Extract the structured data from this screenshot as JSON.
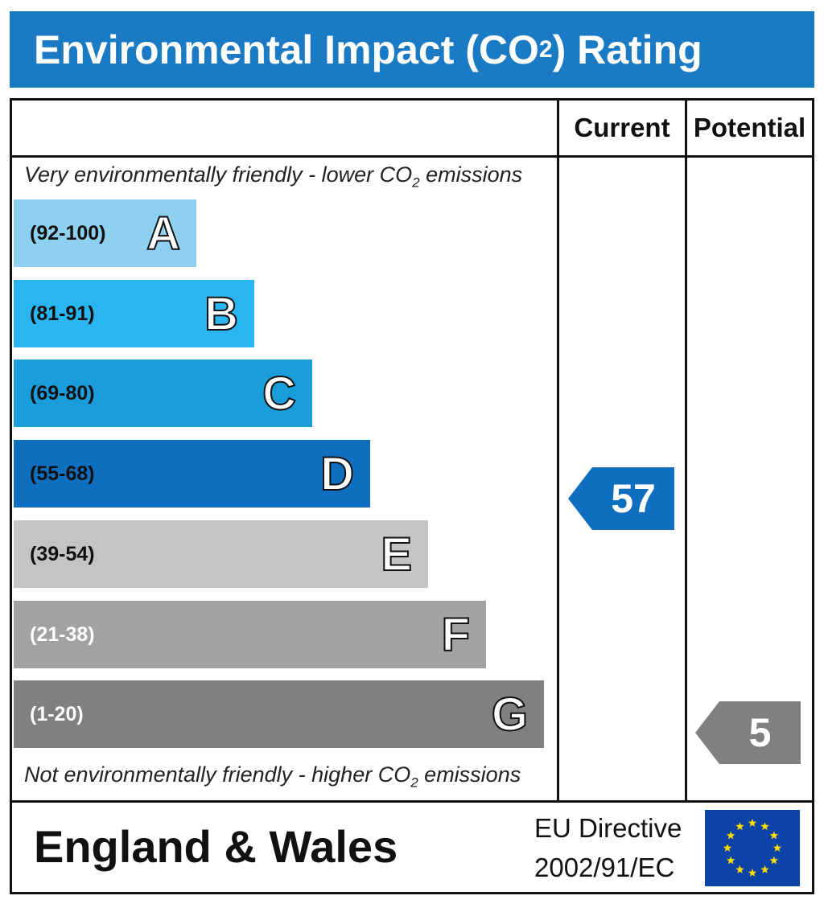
{
  "title": {
    "prefix": "Environmental Impact (CO",
    "subscript": "2",
    "suffix": ") Rating"
  },
  "columns": {
    "current": "Current",
    "potential": "Potential"
  },
  "notes": {
    "top": {
      "text": "Very environmentally friendly - lower CO",
      "subscript": "2",
      "suffix": " emissions"
    },
    "bottom": {
      "text": "Not environmentally friendly - higher CO",
      "subscript": "2",
      "suffix": " emissions"
    }
  },
  "footer": {
    "region": "England & Wales",
    "directive_line1": "EU Directive",
    "directive_line2": "2002/91/EC",
    "flag_icon": "eu-flag-icon"
  },
  "chart_data": {
    "type": "bar",
    "categories": [
      "A",
      "B",
      "C",
      "D",
      "E",
      "F",
      "G"
    ],
    "bands": [
      {
        "letter": "A",
        "range": "(92-100)",
        "min": 92,
        "max": 100,
        "color": "#8dd0f0",
        "range_color": "#111111"
      },
      {
        "letter": "B",
        "range": "(81-91)",
        "min": 81,
        "max": 91,
        "color": "#2ab4f0",
        "range_color": "#111111"
      },
      {
        "letter": "C",
        "range": "(69-80)",
        "min": 69,
        "max": 80,
        "color": "#1a9ddb",
        "range_color": "#111111"
      },
      {
        "letter": "D",
        "range": "(55-68)",
        "min": 55,
        "max": 68,
        "color": "#0f6fbe",
        "range_color": "#111111"
      },
      {
        "letter": "E",
        "range": "(39-54)",
        "min": 39,
        "max": 54,
        "color": "#c4c4c4",
        "range_color": "#111111"
      },
      {
        "letter": "F",
        "range": "(21-38)",
        "min": 21,
        "max": 38,
        "color": "#a2a2a2",
        "range_color": "#ffffff"
      },
      {
        "letter": "G",
        "range": "(1-20)",
        "min": 1,
        "max": 20,
        "color": "#808080",
        "range_color": "#ffffff"
      }
    ],
    "current": {
      "value": 57,
      "band": "D",
      "color": "#0f6fbe"
    },
    "potential": {
      "value": 5,
      "band": "G",
      "color": "#808080"
    }
  }
}
